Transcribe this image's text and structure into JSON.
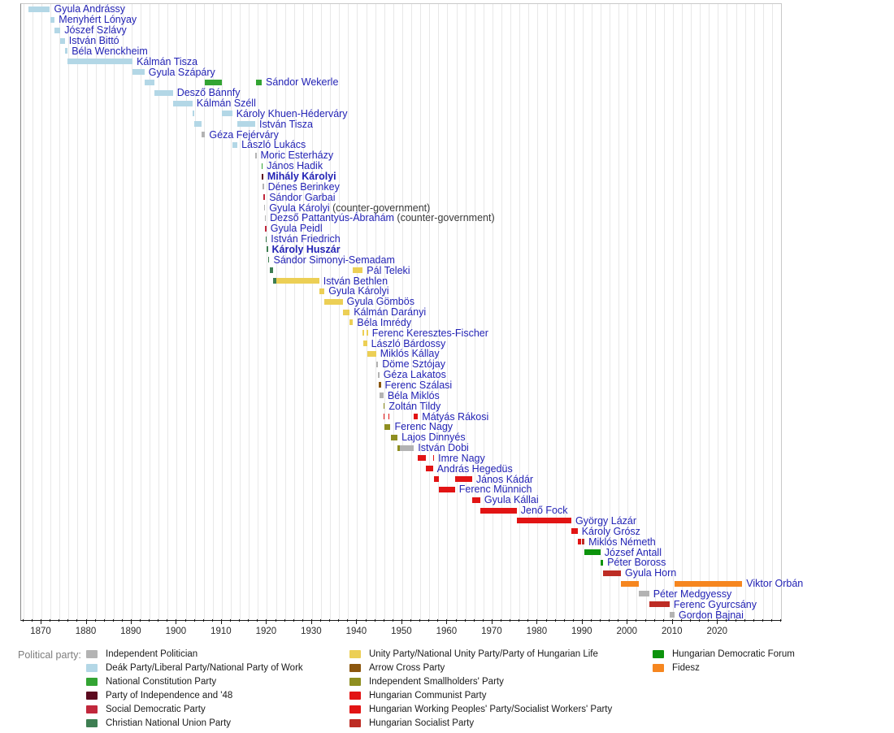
{
  "chart_data": {
    "type": "timeline",
    "description": "Timeline of Hungarian prime ministers colored by political party",
    "x_axis": {
      "domain_start": 1865.5,
      "domain_end": 2034,
      "minor_tick_interval": 2,
      "major_tick_interval": 10,
      "major_tick_start": 1870,
      "major_tick_end": 2020,
      "tick_labels": [
        "1870",
        "1880",
        "1890",
        "1900",
        "1910",
        "1920",
        "1930",
        "1940",
        "1950",
        "1960",
        "1970",
        "1980",
        "1990",
        "2000",
        "2010",
        "2020"
      ]
    },
    "party_colors": {
      "independent": "#b3b3b3",
      "deak": "#b3d7e6",
      "constitution": "#33a433",
      "independence48": "#5c0a1f",
      "socdem": "#c1283c",
      "christian": "#3e7e52",
      "unity": "#eccf55",
      "arrowcross": "#8b560e",
      "smallholders": "#8e8e20",
      "communist": "#e21414",
      "workers": "#e21414",
      "socialist": "#bd2c24",
      "mdf": "#0c930c",
      "fidesz": "#f6861f"
    },
    "text_colors": {
      "pm_label": "#2323b5",
      "suffix": "#3a3a3a",
      "axis": "#2b2b2b",
      "legend_title": "#7d7d7d"
    },
    "prime_ministers": [
      {
        "name": "Gyula Andrássy",
        "terms": [
          {
            "start": 1867.2,
            "end": 1871.9,
            "party": "deak"
          }
        ]
      },
      {
        "name": "Menyhért Lónyay",
        "terms": [
          {
            "start": 1871.9,
            "end": 1872.95,
            "party": "deak"
          }
        ]
      },
      {
        "name": "Jószef Szlávy",
        "terms": [
          {
            "start": 1872.95,
            "end": 1874.2,
            "party": "deak"
          }
        ]
      },
      {
        "name": "István Bittó",
        "terms": [
          {
            "start": 1874.2,
            "end": 1875.2,
            "party": "deak"
          }
        ]
      },
      {
        "name": "Béla Wenckheim",
        "terms": [
          {
            "start": 1875.2,
            "end": 1875.8,
            "party": "deak"
          }
        ]
      },
      {
        "name": "Kálmán Tisza",
        "terms": [
          {
            "start": 1875.8,
            "end": 1890.2,
            "party": "deak"
          }
        ]
      },
      {
        "name": "Gyula Szápáry",
        "terms": [
          {
            "start": 1890.2,
            "end": 1892.85,
            "party": "deak"
          }
        ]
      },
      {
        "name": "Sándor Wekerle",
        "terms": [
          {
            "start": 1892.85,
            "end": 1895.0,
            "party": "deak"
          },
          {
            "start": 1906.3,
            "end": 1910.05,
            "party": "constitution"
          },
          {
            "start": 1917.65,
            "end": 1918.85,
            "party": "constitution"
          }
        ]
      },
      {
        "name": "Desző Bánnfy",
        "terms": [
          {
            "start": 1895.0,
            "end": 1899.15,
            "party": "deak"
          }
        ]
      },
      {
        "name": "Kálmán Széll",
        "terms": [
          {
            "start": 1899.15,
            "end": 1903.5,
            "party": "deak"
          }
        ]
      },
      {
        "name": "Károly Khuen-Héderváry",
        "terms": [
          {
            "start": 1903.5,
            "end": 1903.85,
            "party": "deak"
          },
          {
            "start": 1910.05,
            "end": 1912.3,
            "party": "deak"
          }
        ]
      },
      {
        "name": "István Tisza",
        "terms": [
          {
            "start": 1903.85,
            "end": 1905.45,
            "party": "deak"
          },
          {
            "start": 1913.45,
            "end": 1917.4,
            "party": "deak"
          }
        ]
      },
      {
        "name": "Géza Fejérváry",
        "terms": [
          {
            "start": 1905.45,
            "end": 1906.3,
            "party": "independent"
          }
        ]
      },
      {
        "name": "László Lukács",
        "terms": [
          {
            "start": 1912.3,
            "end": 1913.45,
            "party": "deak"
          }
        ]
      },
      {
        "name": "Moric Esterházy",
        "terms": [
          {
            "start": 1917.4,
            "end": 1917.65,
            "party": "independent"
          }
        ]
      },
      {
        "name": "János Hadik",
        "terms": [
          {
            "start": 1918.8,
            "end": 1918.92,
            "party": "constitution"
          }
        ]
      },
      {
        "name": "Mihály Károlyi",
        "bold": true,
        "terms": [
          {
            "start": 1918.92,
            "end": 1919.05,
            "party": "independence48"
          }
        ]
      },
      {
        "name": "Dénes Berinkey",
        "terms": [
          {
            "start": 1919.05,
            "end": 1919.25,
            "party": "independent"
          }
        ]
      },
      {
        "name": "Sándor Garbai",
        "terms": [
          {
            "start": 1919.25,
            "end": 1919.6,
            "party": "socdem"
          }
        ]
      },
      {
        "name": "Gyula Károlyi",
        "suffix": " (counter-government)",
        "terms": [
          {
            "start": 1919.35,
            "end": 1919.5,
            "party": "independent"
          }
        ]
      },
      {
        "name": "Dezső Pattantyús-Ábrahám",
        "suffix": " (counter-government)",
        "terms": [
          {
            "start": 1919.5,
            "end": 1919.65,
            "party": "independent"
          }
        ]
      },
      {
        "name": "Gyula Peidl",
        "terms": [
          {
            "start": 1919.6,
            "end": 1919.7,
            "party": "socdem"
          }
        ]
      },
      {
        "name": "István Friedrich",
        "terms": [
          {
            "start": 1919.7,
            "end": 1919.9,
            "party": "christian"
          }
        ]
      },
      {
        "name": "Károly Huszár",
        "bold": true,
        "terms": [
          {
            "start": 1919.9,
            "end": 1920.2,
            "party": "christian"
          }
        ]
      },
      {
        "name": "Sándor Simonyi-Semadam",
        "terms": [
          {
            "start": 1920.2,
            "end": 1920.55,
            "party": "christian"
          }
        ]
      },
      {
        "name": "Pál Teleki",
        "terms": [
          {
            "start": 1920.55,
            "end": 1921.3,
            "party": "christian"
          },
          {
            "start": 1939.1,
            "end": 1941.25,
            "party": "unity"
          }
        ]
      },
      {
        "name": "István Bethlen",
        "terms": [
          {
            "start": 1921.3,
            "end": 1922.1,
            "party": "christian"
          },
          {
            "start": 1922.1,
            "end": 1931.6,
            "party": "unity"
          }
        ]
      },
      {
        "name": "Gyula Károlyi",
        "terms": [
          {
            "start": 1931.6,
            "end": 1932.75,
            "party": "unity"
          }
        ]
      },
      {
        "name": "Gyula Gömbös",
        "terms": [
          {
            "start": 1932.75,
            "end": 1936.8,
            "party": "unity"
          }
        ]
      },
      {
        "name": "Kálmán Darányi",
        "terms": [
          {
            "start": 1936.8,
            "end": 1938.35,
            "party": "unity"
          }
        ]
      },
      {
        "name": "Béla Imrédy",
        "terms": [
          {
            "start": 1938.35,
            "end": 1939.1,
            "party": "unity"
          }
        ]
      },
      {
        "name": "Ferenc Keresztes-Fischer",
        "terms": [
          {
            "start": 1941.25,
            "end": 1941.42,
            "party": "unity"
          },
          {
            "start": 1942.15,
            "end": 1942.32,
            "party": "unity"
          }
        ]
      },
      {
        "name": "László Bárdossy",
        "terms": [
          {
            "start": 1941.3,
            "end": 1942.2,
            "party": "unity"
          }
        ]
      },
      {
        "name": "Miklós Kállay",
        "terms": [
          {
            "start": 1942.2,
            "end": 1944.2,
            "party": "unity"
          }
        ]
      },
      {
        "name": "Döme Sztójay",
        "terms": [
          {
            "start": 1944.2,
            "end": 1944.65,
            "party": "independent"
          }
        ]
      },
      {
        "name": "Géza Lakatos",
        "terms": [
          {
            "start": 1944.65,
            "end": 1944.8,
            "party": "independent"
          }
        ]
      },
      {
        "name": "Ferenc Szálasi",
        "terms": [
          {
            "start": 1944.8,
            "end": 1945.25,
            "party": "arrowcross"
          }
        ]
      },
      {
        "name": "Béla Miklós",
        "terms": [
          {
            "start": 1944.95,
            "end": 1945.85,
            "party": "independent"
          }
        ]
      },
      {
        "name": "Zoltán Tildy",
        "terms": [
          {
            "start": 1945.85,
            "end": 1946.1,
            "party": "smallholders"
          }
        ]
      },
      {
        "name": "Mátyás Rákosi",
        "terms": [
          {
            "start": 1945.85,
            "end": 1945.95,
            "party": "communist"
          },
          {
            "start": 1946.9,
            "end": 1947.0,
            "party": "communist"
          },
          {
            "start": 1952.6,
            "end": 1953.5,
            "party": "workers"
          }
        ]
      },
      {
        "name": "Ferenc Nagy",
        "terms": [
          {
            "start": 1946.1,
            "end": 1947.4,
            "party": "smallholders"
          }
        ]
      },
      {
        "name": "Lajos Dinnyés",
        "terms": [
          {
            "start": 1947.4,
            "end": 1948.95,
            "party": "smallholders"
          }
        ]
      },
      {
        "name": "István Dobi",
        "terms": [
          {
            "start": 1948.95,
            "end": 1949.4,
            "party": "smallholders"
          },
          {
            "start": 1949.4,
            "end": 1952.6,
            "party": "independent"
          }
        ]
      },
      {
        "name": "Imre Nagy",
        "terms": [
          {
            "start": 1953.5,
            "end": 1955.3,
            "party": "workers"
          },
          {
            "start": 1956.8,
            "end": 1956.95,
            "party": "workers"
          }
        ]
      },
      {
        "name": "András Hegedüs",
        "terms": [
          {
            "start": 1955.3,
            "end": 1956.8,
            "party": "workers"
          }
        ]
      },
      {
        "name": "János Kádár",
        "terms": [
          {
            "start": 1956.95,
            "end": 1958.1,
            "party": "workers"
          },
          {
            "start": 1961.7,
            "end": 1965.5,
            "party": "workers"
          }
        ]
      },
      {
        "name": "Ferenc Münnich",
        "terms": [
          {
            "start": 1958.1,
            "end": 1961.7,
            "party": "workers"
          }
        ]
      },
      {
        "name": "Gyula Kállai",
        "terms": [
          {
            "start": 1965.5,
            "end": 1967.3,
            "party": "workers"
          }
        ]
      },
      {
        "name": "Jenő Fock",
        "terms": [
          {
            "start": 1967.3,
            "end": 1975.4,
            "party": "workers"
          }
        ]
      },
      {
        "name": "György Lázár",
        "terms": [
          {
            "start": 1975.4,
            "end": 1987.5,
            "party": "workers"
          }
        ]
      },
      {
        "name": "Károly Grósz",
        "terms": [
          {
            "start": 1987.5,
            "end": 1988.9,
            "party": "workers"
          }
        ]
      },
      {
        "name": "Miklós Németh",
        "terms": [
          {
            "start": 1988.9,
            "end": 1989.75,
            "party": "workers"
          },
          {
            "start": 1989.8,
            "end": 1990.4,
            "party": "socialist"
          }
        ]
      },
      {
        "name": "József Antall",
        "terms": [
          {
            "start": 1990.4,
            "end": 1993.95,
            "party": "mdf"
          }
        ]
      },
      {
        "name": "Péter Boross",
        "terms": [
          {
            "start": 1993.95,
            "end": 1994.55,
            "party": "mdf"
          }
        ]
      },
      {
        "name": "Gyula Horn",
        "terms": [
          {
            "start": 1994.55,
            "end": 1998.5,
            "party": "socialist"
          }
        ]
      },
      {
        "name": "Viktor Orbán",
        "terms": [
          {
            "start": 1998.5,
            "end": 2002.4,
            "party": "fidesz"
          },
          {
            "start": 2010.4,
            "end": 2025.4,
            "party": "fidesz"
          }
        ]
      },
      {
        "name": "Péter Medgyessy",
        "terms": [
          {
            "start": 2002.4,
            "end": 2004.75,
            "party": "independent"
          }
        ]
      },
      {
        "name": "Ferenc Gyurcsány",
        "terms": [
          {
            "start": 2004.75,
            "end": 2009.3,
            "party": "socialist"
          }
        ]
      },
      {
        "name": "Gordon Bajnai",
        "terms": [
          {
            "start": 2009.3,
            "end": 2010.4,
            "party": "independent"
          }
        ]
      }
    ]
  },
  "legend": {
    "title": "Political party:",
    "columns": [
      [
        {
          "label": "Independent Politician",
          "party": "independent"
        },
        {
          "label": "Deák Party/Liberal Party/National Party of Work",
          "party": "deak"
        },
        {
          "label": "National Constitution Party",
          "party": "constitution"
        },
        {
          "label": "Party of Independence and '48",
          "party": "independence48"
        },
        {
          "label": "Social Democratic Party",
          "party": "socdem"
        },
        {
          "label": "Christian National Union Party",
          "party": "christian"
        }
      ],
      [
        {
          "label": "Unity Party/National Unity Party/Party of Hungarian Life",
          "party": "unity"
        },
        {
          "label": "Arrow Cross Party",
          "party": "arrowcross"
        },
        {
          "label": "Independent Smallholders' Party",
          "party": "smallholders"
        },
        {
          "label": "Hungarian Communist Party",
          "party": "communist"
        },
        {
          "label": "Hungarian Working Peoples' Party/Socialist Workers' Party",
          "party": "workers"
        },
        {
          "label": "Hungarian Socialist Party",
          "party": "socialist"
        }
      ],
      [
        {
          "label": "Hungarian Democratic Forum",
          "party": "mdf"
        },
        {
          "label": "Fidesz",
          "party": "fidesz"
        }
      ]
    ]
  }
}
